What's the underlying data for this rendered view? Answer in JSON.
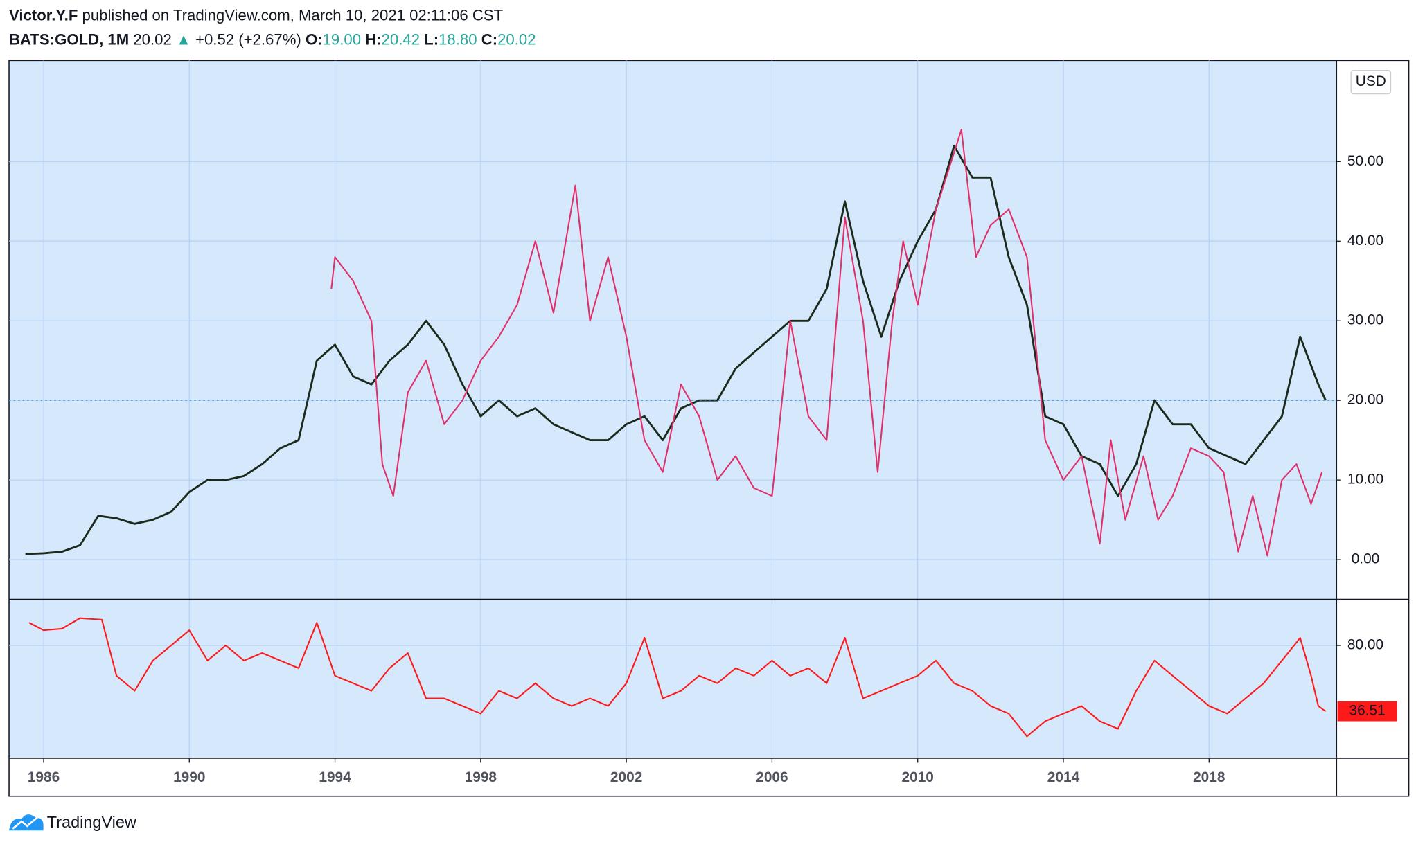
{
  "header": {
    "publisher": "Victor.Y.F",
    "published": "published on TradingView.com, March 10, 2021 02:11:06 CST",
    "symbol": "BATS:GOLD, 1M",
    "last": 20.02,
    "arrow": "▲",
    "change": "+0.52 (+2.67%)",
    "ohlc": [
      {
        "label": "O:",
        "value": "19.00"
      },
      {
        "label": "H:",
        "value": "20.42"
      },
      {
        "label": "L:",
        "value": "18.80"
      },
      {
        "label": "C:",
        "value": "20.02"
      }
    ]
  },
  "footer": {
    "brand": "TradingView"
  },
  "chart_data": [
    {
      "type": "line",
      "currency": "USD",
      "xlim": [
        1985.05,
        2021.5
      ],
      "xticks": [
        1986,
        1990,
        1994,
        1998,
        2002,
        2006,
        2010,
        2014,
        2018
      ],
      "ylim": [
        -5,
        62.7
      ],
      "yticks": [
        {
          "value": 0,
          "label": "0.00"
        },
        {
          "value": 10,
          "label": "10.00"
        },
        {
          "value": 20,
          "label": "20.00"
        },
        {
          "value": 30,
          "label": "30.00"
        },
        {
          "value": 40,
          "label": "40.00"
        },
        {
          "value": 50,
          "label": "50.00"
        }
      ],
      "grid": true,
      "series": [
        {
          "color": "#1b2a1b",
          "x": [
            1985.5,
            1986,
            1986.5,
            1987,
            1987.5,
            1988,
            1988.5,
            1989,
            1989.5,
            1990,
            1990.5,
            1991,
            1991.5,
            1992,
            1992.5,
            1993,
            1993.5,
            1994,
            1994.5,
            1995,
            1995.5,
            1996,
            1996.5,
            1997,
            1997.5,
            1998,
            1998.5,
            1999,
            1999.5,
            2000,
            2000.5,
            2001,
            2001.5,
            2002,
            2002.5,
            2003,
            2003.5,
            2004,
            2004.5,
            2005,
            2005.5,
            2006,
            2006.5,
            2007,
            2007.5,
            2008,
            2008.5,
            2009,
            2009.5,
            2010,
            2010.5,
            2011,
            2011.5,
            2012,
            2012.5,
            2013,
            2013.5,
            2014,
            2014.5,
            2015,
            2015.5,
            2016,
            2016.5,
            2017,
            2017.5,
            2018,
            2018.5,
            2019,
            2019.5,
            2020,
            2020.5,
            2021,
            2021.2
          ],
          "values": [
            0.7,
            0.8,
            1.0,
            1.8,
            5.5,
            5.2,
            4.5,
            5,
            6,
            8.5,
            10,
            10,
            10.5,
            12,
            14,
            15,
            25,
            27,
            23,
            22,
            25,
            27,
            30,
            27,
            22,
            18,
            20,
            18,
            19,
            17,
            16,
            15,
            15,
            17,
            18,
            15,
            19,
            20,
            20,
            24,
            26,
            28,
            30,
            30,
            34,
            45,
            35,
            28,
            35,
            40,
            44,
            52,
            48,
            48,
            38,
            32,
            18,
            17,
            13,
            12,
            8,
            12,
            20,
            17,
            17,
            14,
            13,
            12,
            15,
            18,
            28,
            22,
            20.02
          ]
        },
        {
          "color": "#e0306a",
          "x": [
            1993.9,
            1994,
            1994.5,
            1995,
            1995.3,
            1995.6,
            1996,
            1996.5,
            1997,
            1997.5,
            1998,
            1998.5,
            1999,
            1999.5,
            2000,
            2000.6,
            2001,
            2001.5,
            2002,
            2002.5,
            2003,
            2003.5,
            2004,
            2004.5,
            2005,
            2005.5,
            2006,
            2006.5,
            2007,
            2007.5,
            2008,
            2008.5,
            2008.9,
            2009.3,
            2009.6,
            2010,
            2010.5,
            2011.2,
            2011.6,
            2012,
            2012.5,
            2013,
            2013.5,
            2014,
            2014.5,
            2015,
            2015.3,
            2015.7,
            2016.2,
            2016.6,
            2017,
            2017.5,
            2018,
            2018.4,
            2018.8,
            2019.2,
            2019.6,
            2020,
            2020.4,
            2020.8,
            2021.1
          ],
          "values": [
            34,
            38,
            35,
            30,
            12,
            8,
            21,
            25,
            17,
            20,
            25,
            28,
            32,
            40,
            31,
            47,
            30,
            38,
            28,
            15,
            11,
            22,
            18,
            10,
            13,
            9,
            8,
            30,
            18,
            15,
            43,
            30,
            11,
            30,
            40,
            32,
            44,
            54,
            38,
            42,
            44,
            38,
            15,
            10,
            13,
            2,
            15,
            5,
            13,
            5,
            8,
            14,
            13,
            11,
            1,
            8,
            0.5,
            10,
            12,
            7,
            11
          ]
        }
      ]
    },
    {
      "type": "line",
      "xlim": [
        1985.05,
        2021.5
      ],
      "ylim": [
        5.5,
        110.4
      ],
      "yticks": [
        {
          "value": 80,
          "label": "80.00"
        }
      ],
      "grid": true,
      "series": [
        {
          "color": "#ff1a1a",
          "x": [
            1985.6,
            1986,
            1986.5,
            1987,
            1987.6,
            1988,
            1988.5,
            1989,
            1989.5,
            1990,
            1990.5,
            1991,
            1991.5,
            1992,
            1992.5,
            1993,
            1993.5,
            1994,
            1994.5,
            1995,
            1995.5,
            1996,
            1996.5,
            1997,
            1997.5,
            1998,
            1998.5,
            1999,
            1999.5,
            2000,
            2000.5,
            2001,
            2001.5,
            2002,
            2002.5,
            2003,
            2003.5,
            2004,
            2004.5,
            2005,
            2005.5,
            2006,
            2006.5,
            2007,
            2007.5,
            2008,
            2008.5,
            2009,
            2009.5,
            2010,
            2010.5,
            2011,
            2011.5,
            2012,
            2012.5,
            2013,
            2013.5,
            2014,
            2014.5,
            2015,
            2015.5,
            2016,
            2016.5,
            2017,
            2017.5,
            2018,
            2018.5,
            2019,
            2019.5,
            2020,
            2020.5,
            2020.8,
            2021,
            2021.2
          ],
          "values": [
            95,
            90,
            91,
            98,
            97,
            60,
            50,
            70,
            80,
            90,
            70,
            80,
            70,
            75,
            70,
            65,
            95,
            60,
            55,
            50,
            65,
            75,
            45,
            45,
            40,
            35,
            50,
            45,
            55,
            45,
            40,
            45,
            40,
            55,
            85,
            45,
            50,
            60,
            55,
            65,
            60,
            70,
            60,
            65,
            55,
            85,
            45,
            50,
            55,
            60,
            70,
            55,
            50,
            40,
            35,
            20,
            30,
            35,
            40,
            30,
            25,
            50,
            70,
            60,
            50,
            40,
            35,
            45,
            55,
            70,
            85,
            60,
            40,
            36.51
          ]
        }
      ]
    }
  ]
}
